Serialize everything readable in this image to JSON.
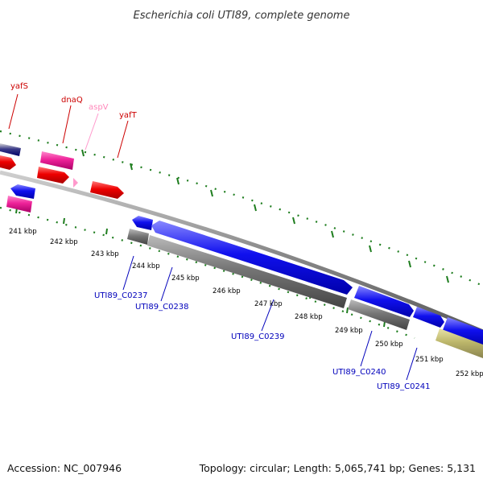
{
  "title": "Escherichia coli UTI89, complete genome",
  "footer": {
    "accession": "Accession: NC_007946",
    "topology": "Topology: circular; Length: 5,065,741 bp; Genes: 5,131"
  },
  "colors": {
    "backbone": "#888888",
    "ticks": "#1e7d1e",
    "cds_blue": "#0000ee",
    "cds_red": "#ee0000",
    "cds_pink": "#ee2299",
    "trna": "#ff99cc",
    "gene_gray": "#707070",
    "other": "#bdb76b",
    "label_red": "#cc0000",
    "label_pink": "#ff88bb",
    "label_blue": "#0000bb"
  },
  "kbp_labels": [
    "241 kbp",
    "242 kbp",
    "243 kbp",
    "244 kbp",
    "245 kbp",
    "246 kbp",
    "247 kbp",
    "248 kbp",
    "249 kbp",
    "250 kbp",
    "251 kbp",
    "252 kbp"
  ],
  "top_labels": [
    {
      "text": "yafS",
      "color": "#cc0000"
    },
    {
      "text": "dnaQ",
      "color": "#cc0000"
    },
    {
      "text": "aspV",
      "color": "#ff88bb"
    },
    {
      "text": "yafT",
      "color": "#cc0000"
    }
  ],
  "bottom_labels": [
    "UTI89_C0237",
    "UTI89_C0238",
    "UTI89_C0239",
    "UTI89_C0240",
    "UTI89_C0241"
  ]
}
